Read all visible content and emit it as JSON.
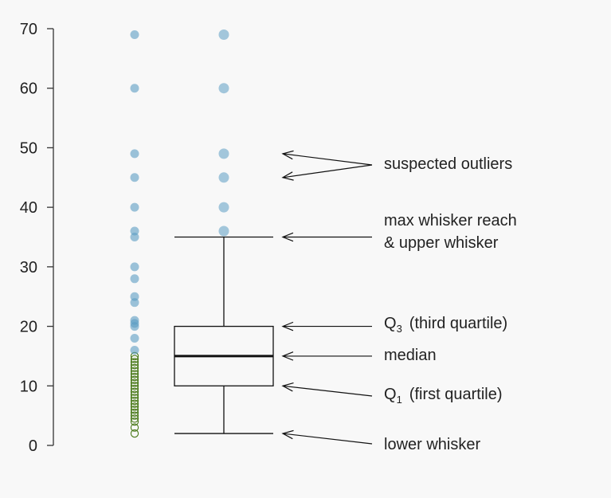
{
  "chart_data": {
    "type": "boxplot",
    "title": "",
    "xlabel": "",
    "ylabel": "",
    "ylim": [
      0,
      70
    ],
    "y_ticks": [
      0,
      10,
      20,
      30,
      40,
      50,
      60,
      70
    ],
    "y_tick_labels": [
      "0",
      "10",
      "20",
      "30",
      "40",
      "50",
      "60",
      "70"
    ],
    "grid": false,
    "box": {
      "lower_whisker": 2,
      "q1": 10,
      "median": 15,
      "q3": 20,
      "upper_whisker": 35,
      "outliers": [
        36,
        40,
        45,
        49,
        60,
        69
      ]
    },
    "strip_points": {
      "below_median_open": [
        2,
        3,
        4,
        4.5,
        5,
        5.5,
        6,
        6.5,
        7,
        7.5,
        8,
        8.5,
        9,
        9.5,
        10,
        10.5,
        11,
        11.5,
        12,
        12.5,
        13,
        13.5,
        14,
        14.5,
        15
      ],
      "above_median_filled": [
        16,
        18,
        20,
        20.5,
        21,
        24,
        25,
        28,
        30,
        35,
        36,
        40,
        45,
        49,
        60,
        69
      ]
    },
    "annotations": {
      "outliers": "suspected outliers",
      "max_reach_line1": "max whisker reach",
      "max_reach_line2": "& upper whisker",
      "q3_sym": "Q",
      "q3_sub": "3",
      "q3_text": "(third quartile)",
      "median": "median",
      "q1_sym": "Q",
      "q1_sub": "1",
      "q1_text": "(first quartile)",
      "lower_whisker": "lower whisker"
    },
    "colors": {
      "point_filled": "#5b9dc3",
      "point_open": "#4a7a1a",
      "box_stroke": "#111111"
    }
  }
}
